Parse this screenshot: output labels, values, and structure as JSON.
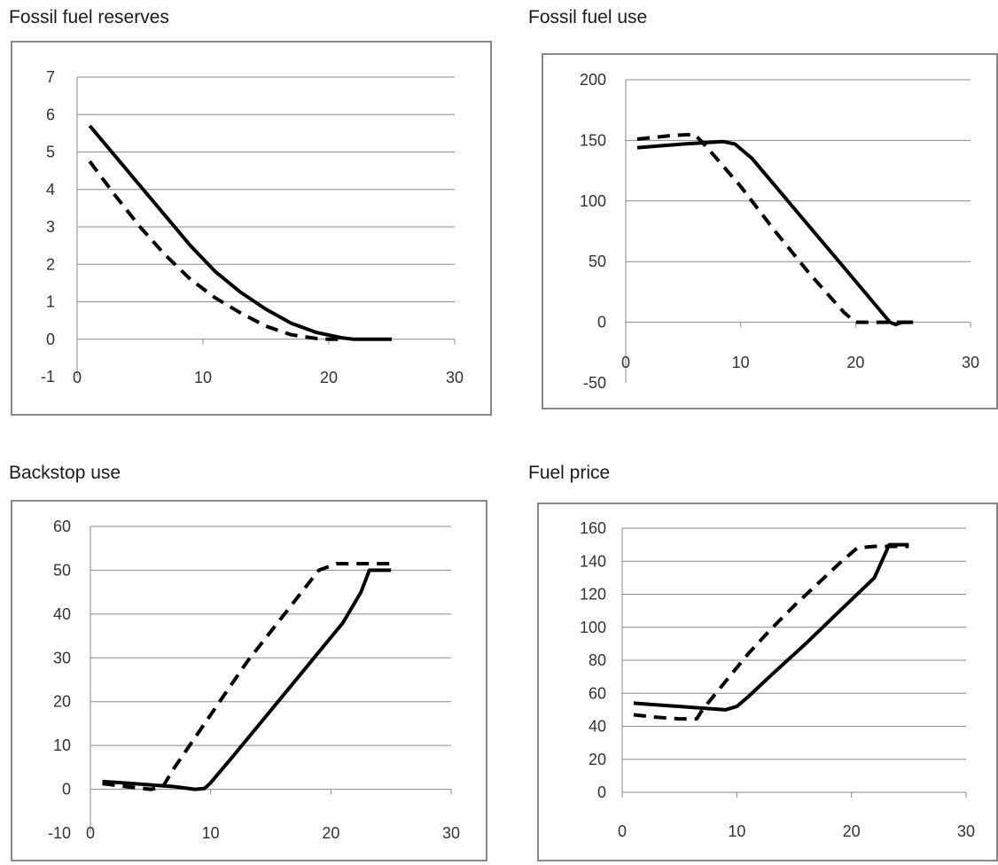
{
  "chart_data": [
    {
      "type": "line",
      "title": "Fossil fuel reserves",
      "xlim": [
        0,
        30
      ],
      "ylim": [
        -1,
        7
      ],
      "xticks": [
        0,
        10,
        20,
        30
      ],
      "yticks": [
        -1,
        0,
        1,
        2,
        3,
        4,
        5,
        6,
        7
      ],
      "grid": true,
      "series": [
        {
          "style": "solid",
          "x": [
            1,
            3,
            5,
            7,
            9,
            11,
            13,
            15,
            17,
            19,
            21,
            22,
            23,
            24,
            25
          ],
          "y": [
            5.7,
            4.9,
            4.1,
            3.3,
            2.5,
            1.8,
            1.25,
            0.8,
            0.43,
            0.18,
            0.04,
            0.0,
            0.0,
            0.0,
            0.0
          ]
        },
        {
          "style": "dashed",
          "x": [
            1,
            3,
            5,
            7,
            9,
            11,
            13,
            15,
            17,
            19,
            20,
            21
          ],
          "y": [
            4.75,
            3.85,
            3.0,
            2.25,
            1.6,
            1.1,
            0.7,
            0.35,
            0.12,
            0.02,
            0.0,
            0.0
          ]
        }
      ]
    },
    {
      "type": "line",
      "title": "Fossil fuel use",
      "xlim": [
        0,
        30
      ],
      "ylim": [
        -50,
        200
      ],
      "xticks": [
        0,
        10,
        20,
        30
      ],
      "yticks": [
        -50,
        0,
        50,
        100,
        150,
        200
      ],
      "grid": true,
      "series": [
        {
          "style": "solid",
          "x": [
            1,
            5,
            8.5,
            9.5,
            11,
            15,
            19,
            23,
            23.5,
            24,
            25
          ],
          "y": [
            144,
            147,
            149,
            147,
            135,
            90,
            45,
            0,
            -2,
            0,
            0
          ]
        },
        {
          "style": "dashed",
          "x": [
            1,
            4,
            6,
            7,
            10,
            13,
            16,
            19,
            20,
            21,
            25
          ],
          "y": [
            151,
            154,
            155,
            145,
            112,
            75,
            40,
            8,
            0,
            0,
            0
          ]
        }
      ]
    },
    {
      "type": "line",
      "title": "Backstop use",
      "xlim": [
        0,
        30
      ],
      "ylim": [
        -10,
        60
      ],
      "xticks": [
        0,
        10,
        20,
        30
      ],
      "yticks": [
        -10,
        0,
        10,
        20,
        30,
        40,
        50,
        60
      ],
      "grid": true,
      "series": [
        {
          "style": "solid",
          "x": [
            1,
            4,
            7,
            8.7,
            9.5,
            10,
            12,
            15,
            18,
            21,
            22.5,
            23.2,
            24,
            25
          ],
          "y": [
            1.8,
            1.2,
            0.6,
            0.0,
            0.2,
            1.5,
            8,
            18,
            28,
            38,
            45,
            50,
            50,
            50
          ]
        },
        {
          "style": "dashed",
          "x": [
            1,
            3,
            5,
            6,
            7,
            9,
            11,
            13,
            15,
            17,
            19,
            20.5,
            22,
            25
          ],
          "y": [
            1.3,
            0.6,
            0.0,
            0.5,
            5,
            13,
            21,
            29,
            36,
            43,
            50,
            51.5,
            51.5,
            51.5
          ]
        }
      ]
    },
    {
      "type": "line",
      "title": "Fuel price",
      "xlim": [
        0,
        30
      ],
      "ylim": [
        0,
        160
      ],
      "xticks": [
        0,
        10,
        20,
        30
      ],
      "yticks": [
        0,
        20,
        40,
        60,
        80,
        100,
        120,
        140,
        160
      ],
      "grid": true,
      "series": [
        {
          "style": "solid",
          "x": [
            1,
            4,
            7,
            9,
            10,
            11,
            13,
            16,
            19,
            22,
            23.3,
            24,
            25
          ],
          "y": [
            54,
            52.5,
            51,
            50,
            52,
            58,
            71,
            90,
            110,
            130,
            150,
            150,
            150
          ]
        },
        {
          "style": "dashed",
          "x": [
            1,
            3,
            5,
            6.5,
            7,
            9,
            11,
            13,
            15,
            17,
            19,
            20.5,
            22,
            25
          ],
          "y": [
            47,
            45.5,
            44.5,
            44.5,
            50,
            67,
            84,
            99,
            113,
            126,
            139,
            148,
            149,
            149
          ]
        }
      ]
    }
  ]
}
